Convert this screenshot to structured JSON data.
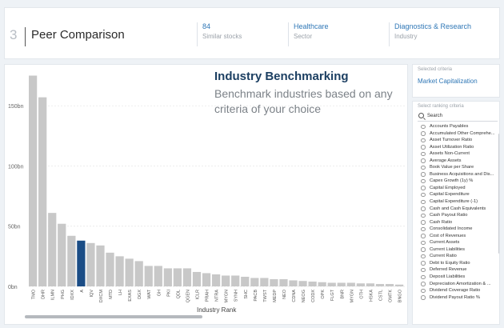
{
  "header": {
    "step_number": "3",
    "title": "Peer Comparison",
    "stats": [
      {
        "value": "84",
        "label": "Similar stocks"
      },
      {
        "value": "Healthcare",
        "label": "Sector"
      },
      {
        "value": "Diagnostics & Research",
        "label": "Industry"
      }
    ]
  },
  "benchmark": {
    "title": "Industry Benchmarking",
    "subtitle": "Benchmark industries based on any criteria of your choice"
  },
  "selected_criteria": {
    "label": "Selected criteria",
    "value": "Market Capitalization"
  },
  "ranking": {
    "label": "Select ranking criteria",
    "search_placeholder": "Search",
    "options": [
      "Accounts Payables",
      "Accumulated Other Comprehe...",
      "Asset Turnover Ratio",
      "Asset Utilization Ratio",
      "Assets Non-Current",
      "Average Assets",
      "Book Value per Share",
      "Business Acquisitions and Dis...",
      "Capex Growth (1y) %",
      "Capital Employed",
      "Capital Expenditure",
      "Capital Expenditure (-1)",
      "Cash and Cash Equivalents",
      "Cash Payout Ratio",
      "Cash Ratio",
      "Consolidated Income",
      "Cost of Revenues",
      "Current Assets",
      "Current Liabilities",
      "Current Ratio",
      "Debt to Equity Ratio",
      "Deferred Revenue",
      "Deposit Liabilities",
      "Depreciation Amortization & ...",
      "Dividend Coverage Ratio",
      "Dividend Payout Ratio %"
    ]
  },
  "chart_data": {
    "type": "bar",
    "title": "",
    "xlabel": "Industry Rank",
    "ylabel": "",
    "ylim": [
      0,
      180
    ],
    "y_unit": "bn",
    "yticks": [
      0,
      50,
      100,
      150
    ],
    "ytick_labels": [
      "0bn",
      "50bn",
      "100bn",
      "150bn"
    ],
    "categories": [
      "TMO",
      "DHR",
      "ILMN",
      "PHG",
      "IDXX",
      "A",
      "IQV",
      "DXCM",
      "MTD",
      "LH",
      "EXAS",
      "DGX",
      "WAT",
      "GH",
      "PKI",
      "QDL",
      "QGEN",
      "ICLR",
      "PRAH",
      "NTRA",
      "MYGN",
      "SYNH",
      "SHC",
      "PACB",
      "TWST",
      "MEDP",
      "NEO",
      "CDNA",
      "NEOG",
      "CODX",
      "OPK",
      "FLGT",
      "BNR",
      "MYGN",
      "OTH",
      "HSKA",
      "CSTL",
      "OMTK",
      "BNGO"
    ],
    "values": [
      175,
      157,
      61,
      52,
      42,
      38,
      36,
      34,
      28,
      25,
      23,
      21,
      17,
      17,
      15,
      15,
      15,
      12,
      11,
      10,
      9,
      9,
      8,
      7,
      7,
      6,
      6,
      5,
      4.5,
      4,
      3.5,
      3,
      3,
      3,
      2.5,
      2.5,
      2,
      2,
      1.5
    ],
    "highlight_index": 5,
    "bar_color": "#c8c8c8",
    "highlight_color": "#1b4d86"
  }
}
